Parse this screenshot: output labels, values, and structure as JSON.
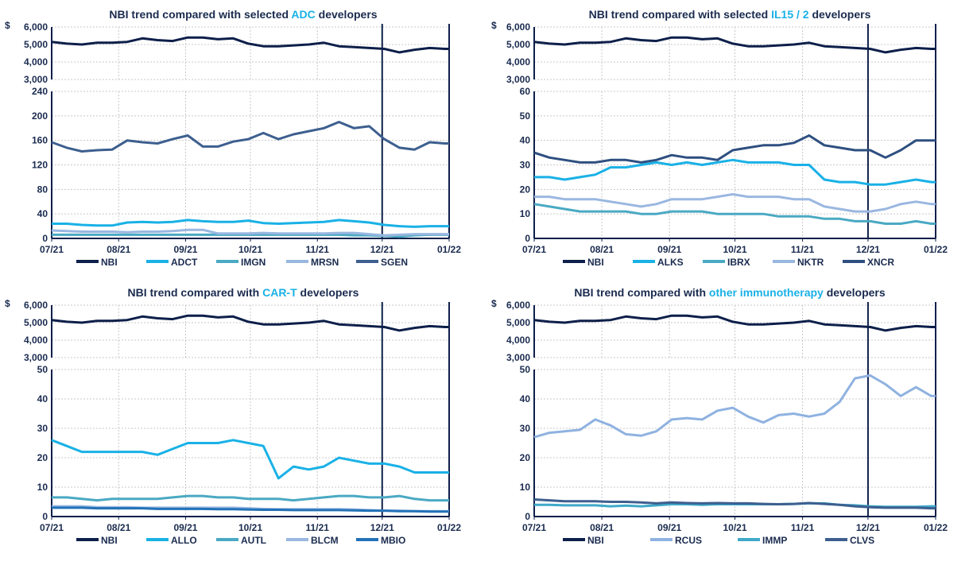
{
  "chart_data": [
    {
      "type": "line",
      "title_parts": [
        "NBI trend compared with selected ",
        "ADC",
        " developers"
      ],
      "x": [
        "2021-07-01",
        "2021-07-08",
        "2021-07-15",
        "2021-07-22",
        "2021-07-29",
        "2021-08-05",
        "2021-08-12",
        "2021-08-19",
        "2021-08-26",
        "2021-09-02",
        "2021-09-09",
        "2021-09-16",
        "2021-09-23",
        "2021-09-30",
        "2021-10-07",
        "2021-10-14",
        "2021-10-21",
        "2021-10-28",
        "2021-11-04",
        "2021-11-11",
        "2021-11-18",
        "2021-11-25",
        "2021-12-02",
        "2021-12-09",
        "2021-12-16",
        "2021-12-23",
        "2021-12-30"
      ],
      "x_ticks": [
        "07/21",
        "08/21",
        "09/21",
        "10/21",
        "11/21",
        "12/21",
        "01/22"
      ],
      "top_axis": {
        "currency": "$",
        "ylim": [
          3000,
          6000
        ],
        "ticks": [
          "3,000",
          "4,000",
          "5,000",
          "6,000"
        ]
      },
      "bottom_axis": {
        "ylim": [
          0,
          240
        ],
        "ticks": [
          "0",
          "40",
          "80",
          "120",
          "160",
          "200",
          "240"
        ]
      },
      "grid": true,
      "legend": "bottom",
      "series": [
        {
          "name": "NBI",
          "panel": "top",
          "color": "#0d1f4a",
          "values": [
            5150,
            5050,
            5000,
            5100,
            5100,
            5150,
            5350,
            5250,
            5200,
            5400,
            5400,
            5300,
            5350,
            5050,
            4900,
            4900,
            4950,
            5000,
            5100,
            4900,
            4850,
            4800,
            4750,
            4550,
            4700,
            4800,
            4750
          ]
        },
        {
          "name": "ADCT",
          "panel": "bottom",
          "color": "#19b1e6",
          "values": [
            24,
            24,
            22,
            21,
            21,
            26,
            27,
            26,
            27,
            30,
            28,
            27,
            27,
            29,
            25,
            24,
            25,
            26,
            27,
            30,
            28,
            26,
            22,
            20,
            19,
            20,
            20
          ]
        },
        {
          "name": "IMGN",
          "panel": "bottom",
          "color": "#4aa9c3",
          "values": [
            6,
            6,
            6,
            6,
            6,
            6,
            6,
            6,
            6,
            6,
            6,
            6,
            6,
            6,
            6,
            6,
            6,
            6,
            6,
            6,
            5,
            5,
            4,
            3,
            5,
            6,
            6
          ]
        },
        {
          "name": "MRSN",
          "panel": "bottom",
          "color": "#9ab7e0",
          "values": [
            13,
            12,
            11,
            11,
            11,
            10,
            11,
            11,
            12,
            14,
            14,
            8,
            8,
            8,
            9,
            8,
            8,
            8,
            8,
            9,
            9,
            7,
            5,
            6,
            7,
            7,
            7
          ]
        },
        {
          "name": "SGEN",
          "panel": "bottom",
          "color": "#3d5f8f",
          "values": [
            157,
            148,
            142,
            144,
            145,
            160,
            157,
            155,
            162,
            168,
            150,
            150,
            158,
            162,
            172,
            162,
            170,
            175,
            180,
            190,
            180,
            183,
            162,
            148,
            145,
            157,
            155
          ]
        }
      ]
    },
    {
      "type": "line",
      "title_parts": [
        "NBI trend compared with selected ",
        "IL15 / 2",
        " developers"
      ],
      "x": [
        "2021-07-01",
        "2021-07-08",
        "2021-07-15",
        "2021-07-22",
        "2021-07-29",
        "2021-08-05",
        "2021-08-12",
        "2021-08-19",
        "2021-08-26",
        "2021-09-02",
        "2021-09-09",
        "2021-09-16",
        "2021-09-23",
        "2021-09-30",
        "2021-10-07",
        "2021-10-14",
        "2021-10-21",
        "2021-10-28",
        "2021-11-04",
        "2021-11-11",
        "2021-11-18",
        "2021-11-25",
        "2021-12-02",
        "2021-12-09",
        "2021-12-16",
        "2021-12-23",
        "2021-12-30"
      ],
      "x_ticks": [
        "07/21",
        "08/21",
        "09/21",
        "10/21",
        "11/21",
        "12/21",
        "01/22"
      ],
      "top_axis": {
        "currency": "$",
        "ylim": [
          3000,
          6000
        ],
        "ticks": [
          "3,000",
          "4,000",
          "5,000",
          "6,000"
        ]
      },
      "bottom_axis": {
        "ylim": [
          0,
          60
        ],
        "ticks": [
          "0",
          "10",
          "20",
          "30",
          "40",
          "50",
          "60"
        ]
      },
      "grid": true,
      "legend": "bottom",
      "series": [
        {
          "name": "NBI",
          "panel": "top",
          "color": "#0d1f4a",
          "values": [
            5150,
            5050,
            5000,
            5100,
            5100,
            5150,
            5350,
            5250,
            5200,
            5400,
            5400,
            5300,
            5350,
            5050,
            4900,
            4900,
            4950,
            5000,
            5100,
            4900,
            4850,
            4800,
            4750,
            4550,
            4700,
            4800,
            4750
          ]
        },
        {
          "name": "ALKS",
          "panel": "bottom",
          "color": "#19b1e6",
          "values": [
            25,
            25,
            24,
            25,
            26,
            29,
            29,
            30,
            31,
            30,
            31,
            30,
            31,
            32,
            31,
            31,
            31,
            30,
            30,
            24,
            23,
            23,
            22,
            22,
            23,
            24,
            23
          ]
        },
        {
          "name": "IBRX",
          "panel": "bottom",
          "color": "#4aa9c3",
          "values": [
            14,
            13,
            12,
            11,
            11,
            11,
            11,
            10,
            10,
            11,
            11,
            11,
            10,
            10,
            10,
            10,
            9,
            9,
            9,
            8,
            8,
            7,
            7,
            6,
            6,
            7,
            6
          ]
        },
        {
          "name": "NKTR",
          "panel": "bottom",
          "color": "#9ab7e0",
          "values": [
            17,
            17,
            16,
            16,
            16,
            15,
            14,
            13,
            14,
            16,
            16,
            16,
            17,
            18,
            17,
            17,
            17,
            16,
            16,
            13,
            12,
            11,
            11,
            12,
            14,
            15,
            14
          ]
        },
        {
          "name": "XNCR",
          "panel": "bottom",
          "color": "#2e4f80",
          "values": [
            35,
            33,
            32,
            31,
            31,
            32,
            32,
            31,
            32,
            34,
            33,
            33,
            32,
            36,
            37,
            38,
            38,
            39,
            42,
            38,
            37,
            36,
            36,
            33,
            36,
            40,
            40
          ]
        }
      ]
    },
    {
      "type": "line",
      "title_parts": [
        "NBI trend compared with ",
        "CAR-T",
        " developers"
      ],
      "x": [
        "2021-07-01",
        "2021-07-08",
        "2021-07-15",
        "2021-07-22",
        "2021-07-29",
        "2021-08-05",
        "2021-08-12",
        "2021-08-19",
        "2021-08-26",
        "2021-09-02",
        "2021-09-09",
        "2021-09-16",
        "2021-09-23",
        "2021-09-30",
        "2021-10-07",
        "2021-10-14",
        "2021-10-21",
        "2021-10-28",
        "2021-11-04",
        "2021-11-11",
        "2021-11-18",
        "2021-11-25",
        "2021-12-02",
        "2021-12-09",
        "2021-12-16",
        "2021-12-23",
        "2021-12-30"
      ],
      "x_ticks": [
        "07/21",
        "08/21",
        "09/21",
        "10/21",
        "11/21",
        "12/21",
        "01/22"
      ],
      "top_axis": {
        "currency": "$",
        "ylim": [
          3000,
          6000
        ],
        "ticks": [
          "3,000",
          "4,000",
          "5,000",
          "6,000"
        ]
      },
      "bottom_axis": {
        "ylim": [
          0,
          50
        ],
        "ticks": [
          "0",
          "10",
          "20",
          "30",
          "40",
          "50"
        ]
      },
      "grid": true,
      "legend": "bottom",
      "series": [
        {
          "name": "NBI",
          "panel": "top",
          "color": "#0d1f4a",
          "values": [
            5150,
            5050,
            5000,
            5100,
            5100,
            5150,
            5350,
            5250,
            5200,
            5400,
            5400,
            5300,
            5350,
            5050,
            4900,
            4900,
            4950,
            5000,
            5100,
            4900,
            4850,
            4800,
            4750,
            4550,
            4700,
            4800,
            4750
          ]
        },
        {
          "name": "ALLO",
          "panel": "bottom",
          "color": "#19b1e6",
          "values": [
            26,
            24,
            22,
            22,
            22,
            22,
            22,
            21,
            23,
            25,
            25,
            25,
            26,
            25,
            24,
            13,
            17,
            16,
            17,
            20,
            19,
            18,
            18,
            17,
            15,
            15,
            15
          ]
        },
        {
          "name": "AUTL",
          "panel": "bottom",
          "color": "#4aa9c3",
          "values": [
            6.5,
            6.5,
            6,
            5.5,
            6,
            6,
            6,
            6,
            6.5,
            7,
            7,
            6.5,
            6.5,
            6,
            6,
            6,
            5.5,
            6,
            6.5,
            7,
            7,
            6.5,
            6.5,
            7,
            6,
            5.5,
            5.5
          ]
        },
        {
          "name": "BLCM",
          "panel": "bottom",
          "color": "#9ab7e0",
          "values": [
            3.5,
            3.5,
            3.5,
            3.2,
            3.2,
            3.2,
            3,
            3,
            3,
            3,
            3,
            3,
            3,
            2.8,
            2.6,
            2.5,
            2.5,
            2.5,
            2.5,
            2.5,
            2.4,
            2.2,
            2,
            2,
            1.8,
            1.8,
            1.8
          ]
        },
        {
          "name": "MBIO",
          "panel": "bottom",
          "color": "#2272b8",
          "values": [
            3,
            3,
            3,
            2.8,
            2.8,
            2.8,
            2.8,
            2.6,
            2.6,
            2.6,
            2.6,
            2.5,
            2.5,
            2.4,
            2.3,
            2.3,
            2.2,
            2.2,
            2.2,
            2.2,
            2.1,
            2,
            2,
            1.8,
            1.8,
            1.7,
            1.7
          ]
        }
      ]
    },
    {
      "type": "line",
      "title_parts": [
        "NBI trend compared with ",
        "other immunotherapy",
        " developers"
      ],
      "x": [
        "2021-07-01",
        "2021-07-08",
        "2021-07-15",
        "2021-07-22",
        "2021-07-29",
        "2021-08-05",
        "2021-08-12",
        "2021-08-19",
        "2021-08-26",
        "2021-09-02",
        "2021-09-09",
        "2021-09-16",
        "2021-09-23",
        "2021-09-30",
        "2021-10-07",
        "2021-10-14",
        "2021-10-21",
        "2021-10-28",
        "2021-11-04",
        "2021-11-11",
        "2021-11-18",
        "2021-11-25",
        "2021-12-02",
        "2021-12-09",
        "2021-12-16",
        "2021-12-23",
        "2021-12-30"
      ],
      "x_ticks": [
        "07/21",
        "08/21",
        "09/21",
        "10/21",
        "11/21",
        "12/21",
        "01/22"
      ],
      "top_axis": {
        "currency": "$",
        "ylim": [
          3000,
          6000
        ],
        "ticks": [
          "3,000",
          "4,000",
          "5,000",
          "6,000"
        ]
      },
      "bottom_axis": {
        "ylim": [
          0,
          50
        ],
        "ticks": [
          "0",
          "10",
          "20",
          "30",
          "40",
          "50"
        ]
      },
      "grid": true,
      "legend": "bottom",
      "series": [
        {
          "name": "NBI",
          "panel": "top",
          "color": "#0d1f4a",
          "values": [
            5150,
            5050,
            5000,
            5100,
            5100,
            5150,
            5350,
            5250,
            5200,
            5400,
            5400,
            5300,
            5350,
            5050,
            4900,
            4900,
            4950,
            5000,
            5100,
            4900,
            4850,
            4800,
            4750,
            4550,
            4700,
            4800,
            4750
          ]
        },
        {
          "name": "RCUS",
          "panel": "bottom",
          "color": "#8fb2e0",
          "values": [
            27,
            28.5,
            29,
            29.5,
            33,
            31,
            28,
            27.5,
            29,
            33,
            33.5,
            33,
            36,
            37,
            34,
            32,
            34.5,
            35,
            34,
            35,
            39,
            47,
            48,
            45,
            41,
            44,
            41
          ]
        },
        {
          "name": "IMMP",
          "panel": "bottom",
          "color": "#3fa9c9",
          "values": [
            4,
            4,
            3.8,
            3.8,
            3.8,
            3.5,
            3.7,
            3.5,
            3.8,
            4.2,
            4.2,
            4,
            4.2,
            4.2,
            4.2,
            4.2,
            4.2,
            4.3,
            4.5,
            4.5,
            4,
            3.8,
            3.5,
            3.3,
            3.3,
            3.3,
            3.5
          ]
        },
        {
          "name": "CLVS",
          "panel": "bottom",
          "color": "#3d5f8f",
          "values": [
            5.8,
            5.5,
            5.2,
            5.2,
            5.2,
            5,
            5,
            4.8,
            4.5,
            4.8,
            4.6,
            4.5,
            4.6,
            4.5,
            4.5,
            4.3,
            4.2,
            4.3,
            4.6,
            4.3,
            4,
            3.5,
            3.2,
            3,
            3,
            3,
            2.8
          ]
        }
      ]
    }
  ]
}
